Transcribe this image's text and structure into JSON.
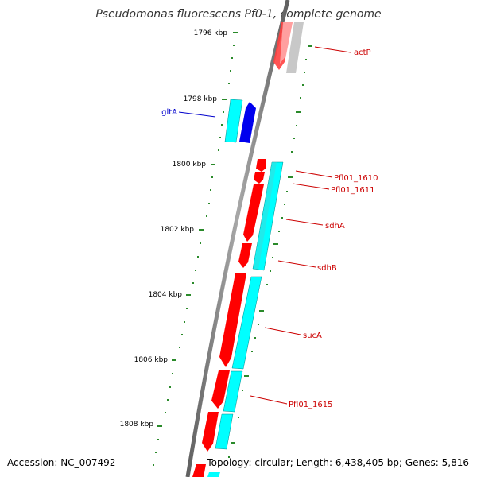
{
  "title": "Pseudomonas fluorescens Pf0-1, complete genome",
  "footer": {
    "accession": "Accession: NC_007492",
    "summary": "Topology: circular; Length: 6,438,405 bp; Genes: 5,816"
  },
  "ticks": [
    "1796 kbp",
    "1798 kbp",
    "1800 kbp",
    "1802 kbp",
    "1804 kbp",
    "1806 kbp",
    "1808 kbp"
  ],
  "genes": [
    {
      "name": "actP",
      "color": "#cc0000"
    },
    {
      "name": "gltA",
      "color": "#0000cc"
    },
    {
      "name": "Pfl01_1610",
      "color": "#cc0000"
    },
    {
      "name": "Pfl01_1611",
      "color": "#cc0000"
    },
    {
      "name": "sdhA",
      "color": "#cc0000"
    },
    {
      "name": "sdhB",
      "color": "#cc0000"
    },
    {
      "name": "sucA",
      "color": "#cc0000"
    },
    {
      "name": "Pfl01_1615",
      "color": "#cc0000"
    }
  ],
  "colors": {
    "forward": "#ff0000",
    "reverse": "#0000ee",
    "cds": "#00ffff",
    "tick": "#2a8a2a",
    "backbone": "#808080"
  }
}
